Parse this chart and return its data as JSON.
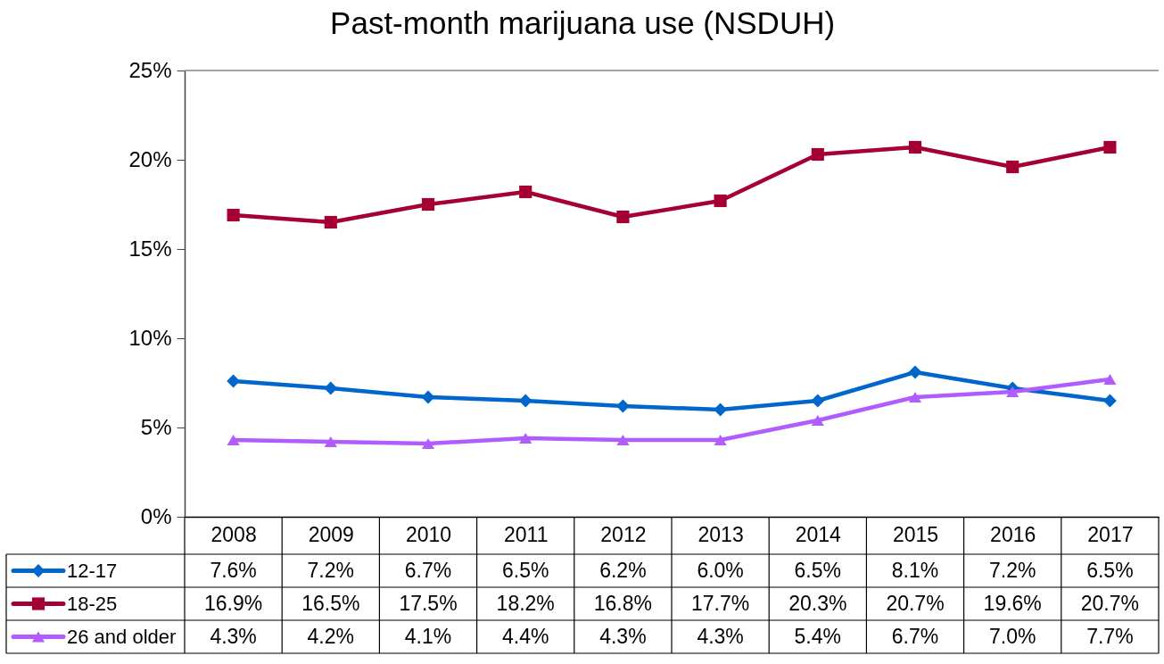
{
  "chart_data": {
    "type": "line",
    "title": "Past-month marijuana use (NSDUH)",
    "categories": [
      "2008",
      "2009",
      "2010",
      "2011",
      "2012",
      "2013",
      "2014",
      "2015",
      "2016",
      "2017"
    ],
    "series": [
      {
        "name": "12-17",
        "color": "#0066cc",
        "marker": "diamond",
        "values": [
          7.6,
          7.2,
          6.7,
          6.5,
          6.2,
          6.0,
          6.5,
          8.1,
          7.2,
          6.5
        ],
        "value_labels": [
          "7.6%",
          "7.2%",
          "6.7%",
          "6.5%",
          "6.2%",
          "6.0%",
          "6.5%",
          "8.1%",
          "7.2%",
          "6.5%"
        ]
      },
      {
        "name": "18-25",
        "color": "#a50034",
        "marker": "square",
        "values": [
          16.9,
          16.5,
          17.5,
          18.2,
          16.8,
          17.7,
          20.3,
          20.7,
          19.6,
          20.7
        ],
        "value_labels": [
          "16.9%",
          "16.5%",
          "17.5%",
          "18.2%",
          "16.8%",
          "17.7%",
          "20.3%",
          "20.7%",
          "19.6%",
          "20.7%"
        ]
      },
      {
        "name": "26 and older",
        "color": "#b05cff",
        "marker": "triangle",
        "values": [
          4.3,
          4.2,
          4.1,
          4.4,
          4.3,
          4.3,
          5.4,
          6.7,
          7.0,
          7.7
        ],
        "value_labels": [
          "4.3%",
          "4.2%",
          "4.1%",
          "4.4%",
          "4.3%",
          "4.3%",
          "5.4%",
          "6.7%",
          "7.0%",
          "7.7%"
        ]
      }
    ],
    "ylim": [
      0,
      25
    ],
    "yticks": [
      {
        "value": 0,
        "label": "0%"
      },
      {
        "value": 5,
        "label": "5%"
      },
      {
        "value": 10,
        "label": "10%"
      },
      {
        "value": 15,
        "label": "15%"
      },
      {
        "value": 20,
        "label": "20%"
      },
      {
        "value": 25,
        "label": "25%"
      }
    ],
    "grid": false,
    "legend": "bottom left"
  }
}
